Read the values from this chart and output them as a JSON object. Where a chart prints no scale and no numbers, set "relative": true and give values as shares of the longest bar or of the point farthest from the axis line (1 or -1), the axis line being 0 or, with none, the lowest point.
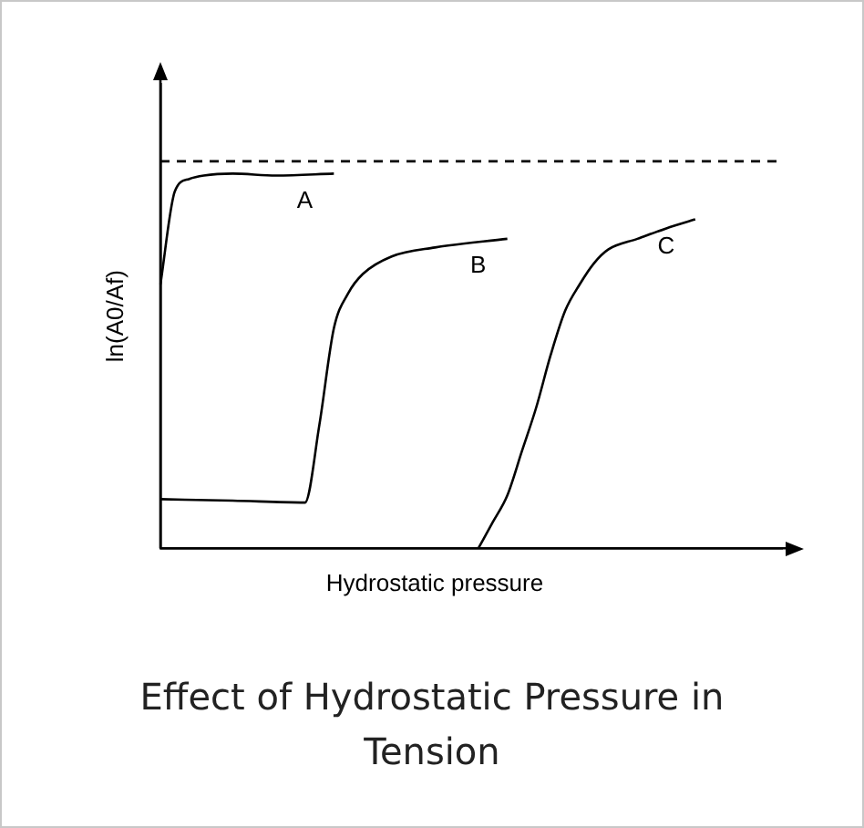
{
  "chart_data": {
    "type": "line",
    "relative": true,
    "title": "Effect of Hydrostatic Pressure in Tension",
    "xlabel": "Hydrostatic pressure",
    "ylabel": "ln(A0/Af)",
    "grid": false,
    "legend": false,
    "marker": "none",
    "line_style": "solid",
    "categories": [
      null,
      null,
      null,
      null,
      null,
      null,
      null,
      null,
      null,
      null,
      null,
      null,
      null,
      null,
      null,
      null,
      null,
      null,
      null,
      null,
      null,
      null,
      null,
      null,
      null,
      null,
      null,
      null,
      null,
      null,
      null,
      null,
      null,
      null,
      null,
      null,
      null,
      null,
      null,
      null,
      null,
      null,
      null,
      null
    ],
    "series": [
      {
        "name": "A",
        "color": "#000000",
        "values": [
          0.704,
          0.953,
          0.986,
          0.995,
          null,
          1,
          null,
          null,
          0.995,
          null,
          null,
          null,
          1,
          null,
          null,
          null,
          null,
          null,
          null,
          null,
          null,
          null,
          null,
          null,
          null,
          null,
          null,
          null,
          null,
          null,
          null,
          null,
          null,
          null,
          null,
          null,
          null,
          null,
          null,
          null,
          null,
          null,
          null,
          null
        ]
      },
      {
        "name": "B",
        "color": "#000000",
        "values": [
          0.131,
          null,
          null,
          null,
          null,
          0.127,
          null,
          null,
          null,
          null,
          0.122,
          0.33,
          0.587,
          0.681,
          0.732,
          null,
          0.779,
          null,
          null,
          0.803,
          null,
          null,
          null,
          null,
          0.826,
          null,
          null,
          null,
          null,
          null,
          null,
          null,
          null,
          null,
          null,
          null,
          null,
          null,
          null,
          null,
          null,
          null,
          null,
          null
        ]
      },
      {
        "name": "C",
        "color": "#000000",
        "values": [
          null,
          null,
          null,
          null,
          null,
          null,
          null,
          null,
          null,
          null,
          null,
          null,
          null,
          null,
          null,
          null,
          null,
          null,
          null,
          null,
          null,
          null,
          0,
          0.07,
          0.141,
          0.258,
          0.376,
          0.516,
          0.634,
          0.704,
          0.761,
          0.798,
          null,
          0.826,
          null,
          0.854,
          null,
          0.878,
          null,
          null,
          null,
          null,
          null,
          null
        ]
      }
    ],
    "ref_lines": [
      {
        "axis": "y",
        "value": 1.033,
        "line_style": "dashed",
        "color": "#000000"
      }
    ]
  }
}
